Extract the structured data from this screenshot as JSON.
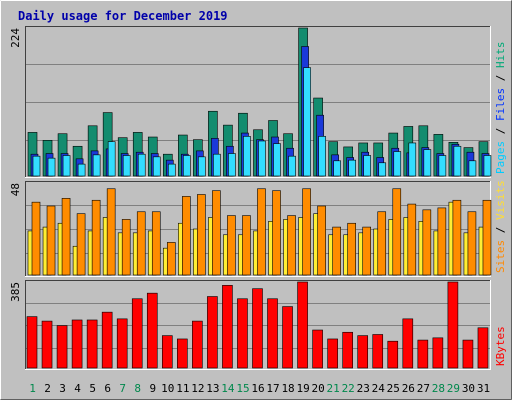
{
  "chart_data": [
    {
      "type": "bar",
      "title": "Daily usage for December 2019",
      "panel": "hits-files-pages",
      "ymax_label": "224",
      "ylim": [
        0,
        224
      ],
      "grid": true,
      "axis_label_parts": [
        {
          "text": "Pages",
          "color": "#00ccff"
        },
        {
          "text": " / ",
          "color": "#000000"
        },
        {
          "text": "Files",
          "color": "#0033ff"
        },
        {
          "text": " / ",
          "color": "#000000"
        },
        {
          "text": "Hits",
          "color": "#00aa77"
        }
      ],
      "categories": [
        "1",
        "2",
        "3",
        "4",
        "5",
        "6",
        "7",
        "8",
        "9",
        "10",
        "11",
        "12",
        "13",
        "14",
        "15",
        "16",
        "17",
        "18",
        "19",
        "20",
        "21",
        "22",
        "23",
        "24",
        "25",
        "26",
        "27",
        "28",
        "29",
        "30",
        "31"
      ],
      "series": [
        {
          "name": "Hits",
          "color": "#138c6f",
          "values": [
            66,
            54,
            64,
            45,
            76,
            96,
            58,
            66,
            59,
            33,
            62,
            55,
            98,
            77,
            95,
            70,
            84,
            64,
            224,
            118,
            52,
            44,
            50,
            50,
            65,
            75,
            76,
            63,
            51,
            43,
            52
          ]
        },
        {
          "name": "Files",
          "color": "#1a39d9",
          "values": [
            33,
            34,
            34,
            26,
            38,
            41,
            34,
            36,
            34,
            24,
            33,
            38,
            57,
            45,
            65,
            55,
            59,
            42,
            196,
            92,
            32,
            28,
            36,
            28,
            42,
            35,
            43,
            34,
            48,
            36,
            34
          ]
        },
        {
          "name": "Pages",
          "color": "#33ddff",
          "values": [
            30,
            27,
            31,
            18,
            32,
            52,
            31,
            33,
            29,
            18,
            31,
            29,
            33,
            34,
            60,
            53,
            49,
            30,
            164,
            60,
            23,
            24,
            31,
            20,
            37,
            50,
            40,
            31,
            45,
            23,
            31
          ]
        }
      ]
    },
    {
      "type": "bar",
      "panel": "visits-sites",
      "ymax_label": "48",
      "ylim": [
        0,
        48
      ],
      "grid": true,
      "axis_label_parts": [
        {
          "text": "Sites",
          "color": "#ff8800"
        },
        {
          "text": " / ",
          "color": "#000000"
        },
        {
          "text": "Visits",
          "color": "#ffdd33"
        }
      ],
      "categories": [
        "1",
        "2",
        "3",
        "4",
        "5",
        "6",
        "7",
        "8",
        "9",
        "10",
        "11",
        "12",
        "13",
        "14",
        "15",
        "16",
        "17",
        "18",
        "19",
        "20",
        "21",
        "22",
        "23",
        "24",
        "25",
        "26",
        "27",
        "28",
        "29",
        "30",
        "31"
      ],
      "series": [
        {
          "name": "Visits",
          "color": "#ffee33",
          "values": [
            23,
            25,
            27,
            15,
            23,
            30,
            22,
            22,
            23,
            14,
            27,
            24,
            30,
            21,
            21,
            23,
            28,
            29,
            30,
            32,
            21,
            21,
            22,
            24,
            29,
            30,
            28,
            23,
            38,
            22,
            25
          ]
        },
        {
          "name": "Sites",
          "color": "#ff8c00",
          "values": [
            38,
            36,
            40,
            32,
            39,
            45,
            29,
            33,
            33,
            17,
            41,
            42,
            44,
            31,
            31,
            45,
            44,
            31,
            45,
            36,
            25,
            27,
            25,
            33,
            45,
            37,
            34,
            35,
            39,
            33,
            39
          ]
        }
      ]
    },
    {
      "type": "bar",
      "panel": "kbytes",
      "ymax_label": "385",
      "ylim": [
        0,
        385
      ],
      "grid": true,
      "axis_label_parts": [
        {
          "text": "KBytes",
          "color": "#ff0000"
        }
      ],
      "categories": [
        "1",
        "2",
        "3",
        "4",
        "5",
        "6",
        "7",
        "8",
        "9",
        "10",
        "11",
        "12",
        "13",
        "14",
        "15",
        "16",
        "17",
        "18",
        "19",
        "20",
        "21",
        "22",
        "23",
        "24",
        "25",
        "26",
        "27",
        "28",
        "29",
        "30",
        "31"
      ],
      "series": [
        {
          "name": "KBytes",
          "color": "#ff0000",
          "values": [
            230,
            210,
            190,
            215,
            215,
            250,
            220,
            310,
            335,
            145,
            130,
            210,
            320,
            370,
            310,
            355,
            310,
            275,
            385,
            170,
            130,
            160,
            145,
            150,
            120,
            220,
            125,
            135,
            385,
            125,
            180
          ]
        }
      ],
      "x_labels": [
        {
          "text": "1",
          "weekend": true
        },
        {
          "text": "2",
          "weekend": false
        },
        {
          "text": "3",
          "weekend": false
        },
        {
          "text": "4",
          "weekend": false
        },
        {
          "text": "5",
          "weekend": false
        },
        {
          "text": "6",
          "weekend": false
        },
        {
          "text": "7",
          "weekend": true
        },
        {
          "text": "8",
          "weekend": true
        },
        {
          "text": "9",
          "weekend": false
        },
        {
          "text": "10",
          "weekend": false
        },
        {
          "text": "11",
          "weekend": false
        },
        {
          "text": "12",
          "weekend": false
        },
        {
          "text": "13",
          "weekend": false
        },
        {
          "text": "14",
          "weekend": true
        },
        {
          "text": "15",
          "weekend": true
        },
        {
          "text": "16",
          "weekend": false
        },
        {
          "text": "17",
          "weekend": false
        },
        {
          "text": "18",
          "weekend": false
        },
        {
          "text": "19",
          "weekend": false
        },
        {
          "text": "20",
          "weekend": false
        },
        {
          "text": "21",
          "weekend": true
        },
        {
          "text": "22",
          "weekend": true
        },
        {
          "text": "23",
          "weekend": false
        },
        {
          "text": "24",
          "weekend": false
        },
        {
          "text": "25",
          "weekend": false
        },
        {
          "text": "26",
          "weekend": false
        },
        {
          "text": "27",
          "weekend": false
        },
        {
          "text": "28",
          "weekend": true
        },
        {
          "text": "29",
          "weekend": true
        },
        {
          "text": "30",
          "weekend": false
        },
        {
          "text": "31",
          "weekend": false
        }
      ]
    }
  ],
  "colors": {
    "background": "#c0c0c0",
    "plot_background": "#c0c0c0",
    "title": "#0000aa",
    "grid": "#808080",
    "weekday_label": "#000000",
    "weekend_label": "#00884c"
  }
}
